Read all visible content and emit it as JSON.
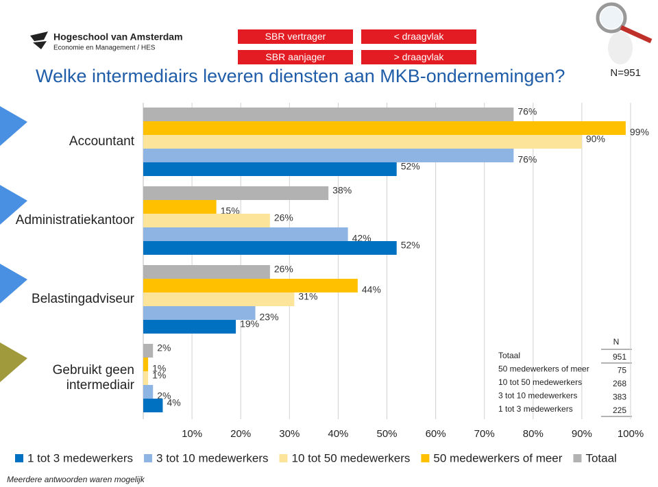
{
  "header": {
    "logo_title": "Hogeschool van Amsterdam",
    "logo_subtitle": "Economie en Management / HES",
    "buttons": [
      "SBR vertrager",
      "< draagvlak",
      "SBR aanjager",
      "> draagvlak"
    ]
  },
  "chart_data": {
    "type": "barh",
    "title": "Welke intermediairs leveren diensten aan MKB-ondernemingen?",
    "subtitle": "N=951",
    "categories": [
      "Accountant",
      "Administratiekantoor",
      "Belastingadviseur",
      "Gebruikt geen intermediair"
    ],
    "series": [
      {
        "name": "1 tot 3 medewerkers",
        "color": "#0070c0",
        "values": [
          52,
          52,
          19,
          4
        ],
        "value_labels": [
          "52%",
          "52%",
          "19%",
          "4%"
        ]
      },
      {
        "name": "3 tot 10 medewerkers",
        "color": "#8eb4e3",
        "values": [
          76,
          42,
          23,
          2
        ],
        "value_labels": [
          "76%",
          "42%",
          "23%",
          "2%"
        ]
      },
      {
        "name": "10 tot 50 medewerkers",
        "color": "#fde49b",
        "values": [
          90,
          26,
          31,
          1
        ],
        "value_labels": [
          "90%",
          "26%",
          "31%",
          "1%"
        ]
      },
      {
        "name": "50 medewerkers of meer",
        "color": "#ffc000",
        "values": [
          99,
          15,
          44,
          1
        ],
        "value_labels": [
          "99%",
          "15%",
          "44%",
          "1%"
        ]
      },
      {
        "name": "Totaal",
        "color": "#b2b2b2",
        "values": [
          76,
          38,
          26,
          2
        ],
        "value_labels": [
          "76%",
          "38%",
          "26%",
          "2%"
        ]
      }
    ],
    "xlim": [
      0,
      100
    ],
    "xticks": [
      {
        "value": 10,
        "label": "10%"
      },
      {
        "value": 20,
        "label": "20%"
      },
      {
        "value": 30,
        "label": "30%"
      },
      {
        "value": 40,
        "label": "40%"
      },
      {
        "value": 50,
        "label": "50%"
      },
      {
        "value": 60,
        "label": "60%"
      },
      {
        "value": 70,
        "label": "70%"
      },
      {
        "value": 80,
        "label": "80%"
      },
      {
        "value": 90,
        "label": "90%"
      },
      {
        "value": 100,
        "label": "100%"
      }
    ],
    "grid": true,
    "n_table": {
      "header": "N",
      "rows": [
        [
          "Totaal",
          951
        ],
        [
          "50 medewerkers of meer",
          75
        ],
        [
          "10 tot 50 medewerkers",
          268
        ],
        [
          "3 tot 10 medewerkers",
          383
        ],
        [
          "1 tot 3 medewerkers",
          225
        ]
      ]
    },
    "footnote": "Meerdere antwoorden waren mogelijk"
  }
}
